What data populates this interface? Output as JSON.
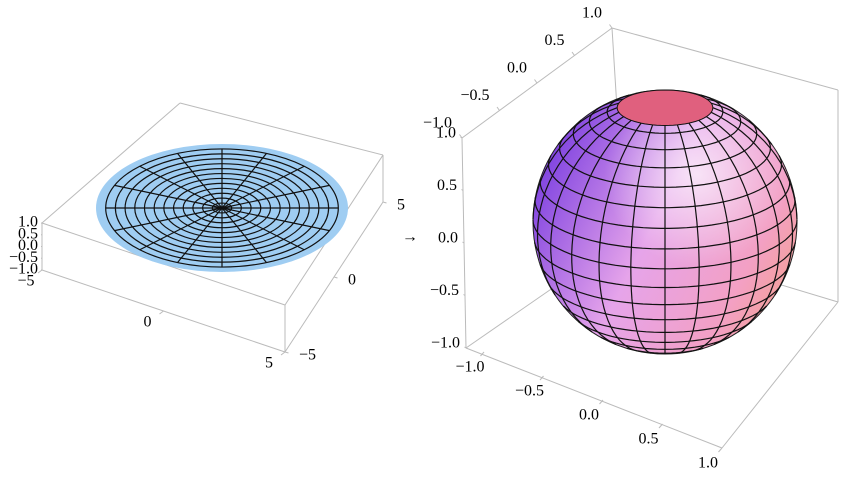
{
  "chart_data": [
    {
      "type": "surface3d",
      "xlim": [
        -5,
        5
      ],
      "ylim": [
        -5,
        5
      ],
      "zlim": [
        -1,
        1
      ],
      "xticks": [
        {
          "value": -5,
          "label": "−5"
        },
        0,
        5
      ],
      "yticks": [
        {
          "value": -5,
          "label": "−5"
        },
        0,
        5
      ],
      "zticks": [
        {
          "value": -1,
          "label": "−1.0"
        },
        {
          "value": -0.5,
          "label": "−0.5"
        },
        {
          "value": 0,
          "label": "0.0"
        },
        {
          "value": 0.5,
          "label": "0.5"
        },
        {
          "value": 1,
          "label": "1.0"
        }
      ],
      "color": "#9fcdf2"
    },
    {
      "type": "sphere3d",
      "xlim": [
        -1,
        1
      ],
      "ylim": [
        -1,
        1
      ],
      "zlim": [
        -1,
        1
      ],
      "xticks": [
        {
          "value": -1,
          "label": "−1.0"
        },
        {
          "value": -0.5,
          "label": "−0.5"
        },
        {
          "value": 0,
          "label": "0.0"
        },
        {
          "value": 0.5,
          "label": "0.5"
        },
        {
          "value": 1,
          "label": "1.0"
        }
      ],
      "yticks": [
        {
          "value": -1,
          "label": "−1.0"
        },
        {
          "value": -0.5,
          "label": "−0.5"
        },
        {
          "value": 0,
          "label": "0.0"
        },
        {
          "value": 0.5,
          "label": "0.5"
        },
        {
          "value": 1,
          "label": "1.0"
        }
      ],
      "zticks": [
        {
          "value": -1,
          "label": "−1.0"
        },
        {
          "value": -0.5,
          "label": "−0.5"
        },
        {
          "value": 0,
          "label": "0.0"
        },
        {
          "value": 0.5,
          "label": "0.5"
        },
        {
          "value": 1,
          "label": "1.0"
        }
      ]
    }
  ],
  "arrow": "→"
}
